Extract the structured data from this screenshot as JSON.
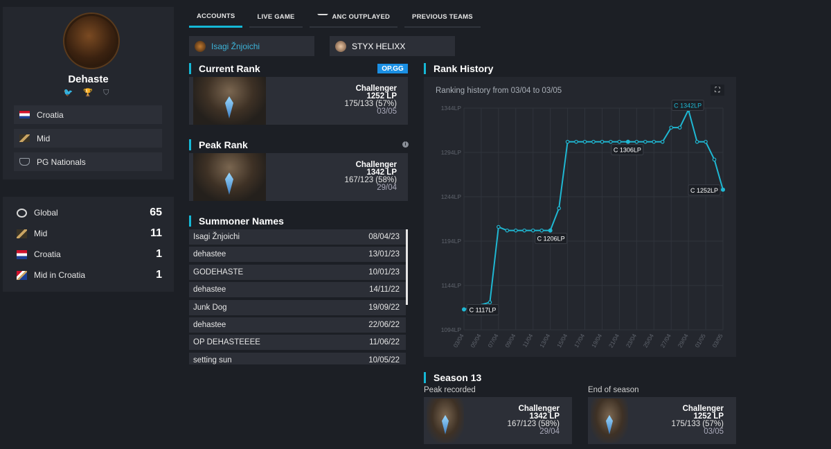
{
  "profile": {
    "name": "Dehaste",
    "socials": "🐦 🏆 ⛉",
    "country": "Croatia",
    "role": "Mid",
    "team": "PG Nationals"
  },
  "rankings": [
    {
      "label": "Global",
      "value": "65",
      "icon": "globe-icon"
    },
    {
      "label": "Mid",
      "value": "11",
      "icon": "mid-lane-icon"
    },
    {
      "label": "Croatia",
      "value": "1",
      "icon": "croatia-flag-icon"
    },
    {
      "label": "Mid in Croatia",
      "value": "1",
      "icon": "mid-croatia-icon"
    }
  ],
  "tabs": [
    "ACCOUNTS",
    "LIVE GAME",
    "ANC OUTPLAYED",
    "PREVIOUS TEAMS"
  ],
  "accounts": [
    "Isagi Žnjoichi",
    "STYX HELIXX"
  ],
  "current_rank": {
    "title": "Current Rank",
    "badge": "OP.GG",
    "tier": "Challenger",
    "lp": "1252 LP",
    "record": "175/133 (57%)",
    "date": "03/05"
  },
  "peak_rank": {
    "title": "Peak Rank",
    "tier": "Challenger",
    "lp": "1342 LP",
    "record": "167/123 (58%)",
    "date": "29/04"
  },
  "summoner_names": {
    "title": "Summoner Names",
    "rows": [
      {
        "name": "Isagi Žnjoichi",
        "date": "08/04/23"
      },
      {
        "name": "dehastee",
        "date": "13/01/23"
      },
      {
        "name": "GODEHASTE",
        "date": "10/01/23"
      },
      {
        "name": "dehastee",
        "date": "14/11/22"
      },
      {
        "name": "Junk Dog",
        "date": "19/09/22"
      },
      {
        "name": "dehastee",
        "date": "22/06/22"
      },
      {
        "name": "OP DEHASTEEEE",
        "date": "11/06/22"
      },
      {
        "name": "setting sun",
        "date": "10/05/22"
      }
    ]
  },
  "rank_history": {
    "title": "Rank History",
    "subtitle": "Ranking history from 03/04 to 03/05",
    "expand_icon": "⛶"
  },
  "chart_data": {
    "type": "line",
    "title": "Ranking history from 03/04 to 03/05",
    "x_ticks": [
      "03/04",
      "05/04",
      "07/04",
      "09/04",
      "11/04",
      "13/04",
      "15/04",
      "17/04",
      "19/04",
      "21/04",
      "23/04",
      "25/04",
      "27/04",
      "29/04",
      "01/05",
      "03/05"
    ],
    "y_ticks": [
      "1344LP",
      "1294LP",
      "1244LP",
      "1194LP",
      "1144LP",
      "1094LP"
    ],
    "ylim": [
      1094,
      1344
    ],
    "x": [
      "03/04",
      "06/04",
      "07/04",
      "08/04",
      "09/04",
      "10/04",
      "11/04",
      "12/04",
      "13/04",
      "14/04",
      "15/04",
      "16/04",
      "17/04",
      "18/04",
      "19/04",
      "20/04",
      "21/04",
      "22/04",
      "23/04",
      "24/04",
      "25/04",
      "26/04",
      "27/04",
      "28/04",
      "29/04",
      "30/04",
      "01/05",
      "02/05",
      "03/05"
    ],
    "values": [
      1117,
      1125,
      1210,
      1206,
      1206,
      1206,
      1206,
      1206,
      1206,
      1231,
      1306,
      1306,
      1306,
      1306,
      1306,
      1306,
      1306,
      1306,
      1306,
      1306,
      1306,
      1306,
      1322,
      1322,
      1342,
      1306,
      1306,
      1286,
      1252
    ],
    "annotations": [
      {
        "x": "03/04",
        "value": 1117,
        "label": "C 1117LP"
      },
      {
        "x": "13/04",
        "value": 1206,
        "label": "C 1206LP"
      },
      {
        "x": "22/04",
        "value": 1306,
        "label": "C 1306LP"
      },
      {
        "x": "29/04",
        "value": 1342,
        "label": "C 1342LP"
      },
      {
        "x": "03/05",
        "value": 1252,
        "label": "C 1252LP"
      }
    ],
    "color": "#1fb8d3",
    "grid": true
  },
  "season": {
    "title": "Season 13",
    "peak_label": "Peak recorded",
    "peak": {
      "tier": "Challenger",
      "lp": "1342 LP",
      "record": "167/123 (58%)",
      "date": "29/04"
    },
    "end_label": "End of season",
    "end": {
      "tier": "Challenger",
      "lp": "1252 LP",
      "record": "175/133 (57%)",
      "date": "03/05"
    }
  }
}
